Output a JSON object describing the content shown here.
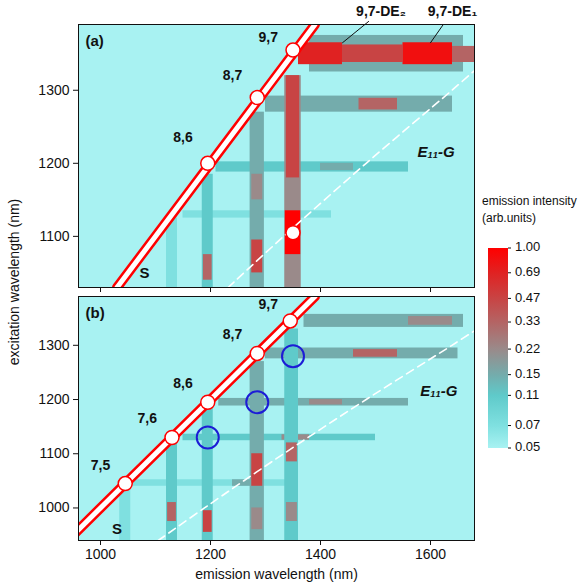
{
  "chart_data": {
    "type": "heatmap",
    "xlabel": "emission wavelength (nm)",
    "ylabel": "excitation wavelength (nm)",
    "xlim": [
      960,
      1680
    ],
    "xticks": [
      1000,
      1200,
      1400,
      1600
    ],
    "colorbar": {
      "title": [
        "emission intensity",
        "(arb.units)"
      ],
      "range": [
        0.05,
        1
      ],
      "ticks": [
        0.05,
        0.07,
        0.11,
        0.15,
        0.22,
        0.33,
        0.47,
        0.69,
        {
          "value": 1,
          "label": "1.00"
        }
      ],
      "colors": [
        "#a8f2f2",
        "#7fe0e0",
        "#5fcaca",
        "#74acac",
        "#9a8a8a",
        "#b46464",
        "#c84444",
        "#e02222",
        "#ff0000"
      ]
    },
    "panels": [
      {
        "label": "(a)",
        "ylim": [
          1030,
          1390
        ],
        "yticks": [
          1100,
          1200,
          1300
        ],
        "tick_labels": "y",
        "cells": [
          [
            1380,
            1660,
            1325,
            1375,
            0.15
          ],
          [
            1360,
            1440,
            1335,
            1365,
            0.69
          ],
          [
            1440,
            1550,
            1338,
            1362,
            0.47
          ],
          [
            1550,
            1640,
            1335,
            1365,
            0.85
          ],
          [
            1640,
            1680,
            1338,
            1360,
            0.33
          ],
          [
            1300,
            1640,
            1270,
            1292,
            0.15
          ],
          [
            1470,
            1540,
            1273,
            1289,
            0.33
          ],
          [
            1210,
            1560,
            1188,
            1202,
            0.11
          ],
          [
            1400,
            1460,
            1190,
            1200,
            0.15
          ],
          [
            1150,
            1420,
            1125,
            1135,
            0.07
          ],
          [
            1335,
            1365,
            1030,
            1320,
            0.22
          ],
          [
            1338,
            1362,
            1180,
            1320,
            0.47
          ],
          [
            1336,
            1364,
            1075,
            1135,
            1.0
          ],
          [
            1272,
            1298,
            1030,
            1270,
            0.15
          ],
          [
            1275,
            1295,
            1050,
            1095,
            0.47
          ],
          [
            1275,
            1295,
            1150,
            1185,
            0.22
          ],
          [
            1185,
            1205,
            1030,
            1185,
            0.11
          ],
          [
            1187,
            1203,
            1040,
            1075,
            0.33
          ],
          [
            1120,
            1140,
            1030,
            1125,
            0.07
          ]
        ],
        "saturated": [
          [
            1195,
            1200
          ],
          [
            1285,
            1290
          ],
          [
            1350,
            1355
          ],
          [
            1350,
            1105
          ]
        ],
        "s_line": {
          "label": "S",
          "from": 1030,
          "to": 1390,
          "label_at": [
            1080,
            1050
          ]
        },
        "g_line": {
          "label": "E₁₁-G",
          "label_at": [
            1610,
            1215
          ],
          "points": [
            [
              1232,
              1030
            ],
            [
              1333,
              1100
            ],
            [
              1483,
              1200
            ],
            [
              1639,
              1300
            ],
            [
              1700,
              1340
            ]
          ]
        },
        "annotations": [
          {
            "text": "8,6",
            "x": 1150,
            "y": 1235
          },
          {
            "text": "8,7",
            "x": 1240,
            "y": 1320
          },
          {
            "text": "9,7",
            "x": 1305,
            "y": 1372
          },
          {
            "text": "9,7-DE₂",
            "x": 1510,
            "y": 1408,
            "to": [
              1440,
              1365
            ]
          },
          {
            "text": "9,7-DE₁",
            "x": 1640,
            "y": 1408,
            "to": [
              1600,
              1365
            ]
          }
        ]
      },
      {
        "label": "(b)",
        "ylim": [
          940,
          1390
        ],
        "yticks": [
          1000,
          1100,
          1200,
          1300
        ],
        "cells": [
          [
            1370,
            1660,
            1333,
            1357,
            0.15
          ],
          [
            1560,
            1640,
            1337,
            1353,
            0.22
          ],
          [
            1300,
            1650,
            1275,
            1295,
            0.15
          ],
          [
            1460,
            1540,
            1278,
            1292,
            0.33
          ],
          [
            1215,
            1560,
            1188,
            1202,
            0.15
          ],
          [
            1380,
            1440,
            1190,
            1200,
            0.22
          ],
          [
            1150,
            1500,
            1124,
            1136,
            0.11
          ],
          [
            1330,
            1380,
            1125,
            1135,
            0.22
          ],
          [
            1060,
            1350,
            1040,
            1052,
            0.07
          ],
          [
            1240,
            1280,
            1040,
            1052,
            0.15
          ],
          [
            1335,
            1360,
            940,
            1330,
            0.11
          ],
          [
            1338,
            1358,
            975,
            1010,
            0.22
          ],
          [
            1338,
            1358,
            1085,
            1120,
            0.33
          ],
          [
            1272,
            1298,
            940,
            1270,
            0.15
          ],
          [
            1275,
            1295,
            1040,
            1100,
            0.47
          ],
          [
            1275,
            1295,
            960,
            1000,
            0.22
          ],
          [
            1185,
            1205,
            940,
            1185,
            0.11
          ],
          [
            1187,
            1203,
            955,
            995,
            0.47
          ],
          [
            1120,
            1140,
            940,
            1120,
            0.11
          ],
          [
            1122,
            1138,
            975,
            1010,
            0.33
          ],
          [
            1035,
            1055,
            940,
            1035,
            0.07
          ]
        ],
        "saturated": [
          [
            1045,
            1045
          ],
          [
            1130,
            1130
          ],
          [
            1195,
            1195
          ],
          [
            1285,
            1285
          ],
          [
            1345,
            1345
          ]
        ],
        "s_line": {
          "label": "S",
          "from": 940,
          "to": 1390,
          "label_at": [
            1030,
            960
          ]
        },
        "g_line": {
          "label": "E₁₁-G",
          "label_at": [
            1615,
            1215
          ],
          "points": [
            [
              1105,
              940
            ],
            [
              1189,
              1000
            ],
            [
              1333,
              1100
            ],
            [
              1483,
              1200
            ],
            [
              1639,
              1300
            ],
            [
              1700,
              1340
            ]
          ]
        },
        "circles": {
          "color": "#1c1cd6",
          "points": [
            [
              1195,
              1130
            ],
            [
              1285,
              1195
            ],
            [
              1350,
              1280
            ]
          ]
        },
        "annotations": [
          {
            "text": "7,5",
            "x": 1000,
            "y": 1078
          },
          {
            "text": "7,6",
            "x": 1085,
            "y": 1165
          },
          {
            "text": "8,6",
            "x": 1150,
            "y": 1230
          },
          {
            "text": "8,7",
            "x": 1240,
            "y": 1320
          },
          {
            "text": "9,7",
            "x": 1305,
            "y": 1375
          }
        ]
      }
    ]
  }
}
